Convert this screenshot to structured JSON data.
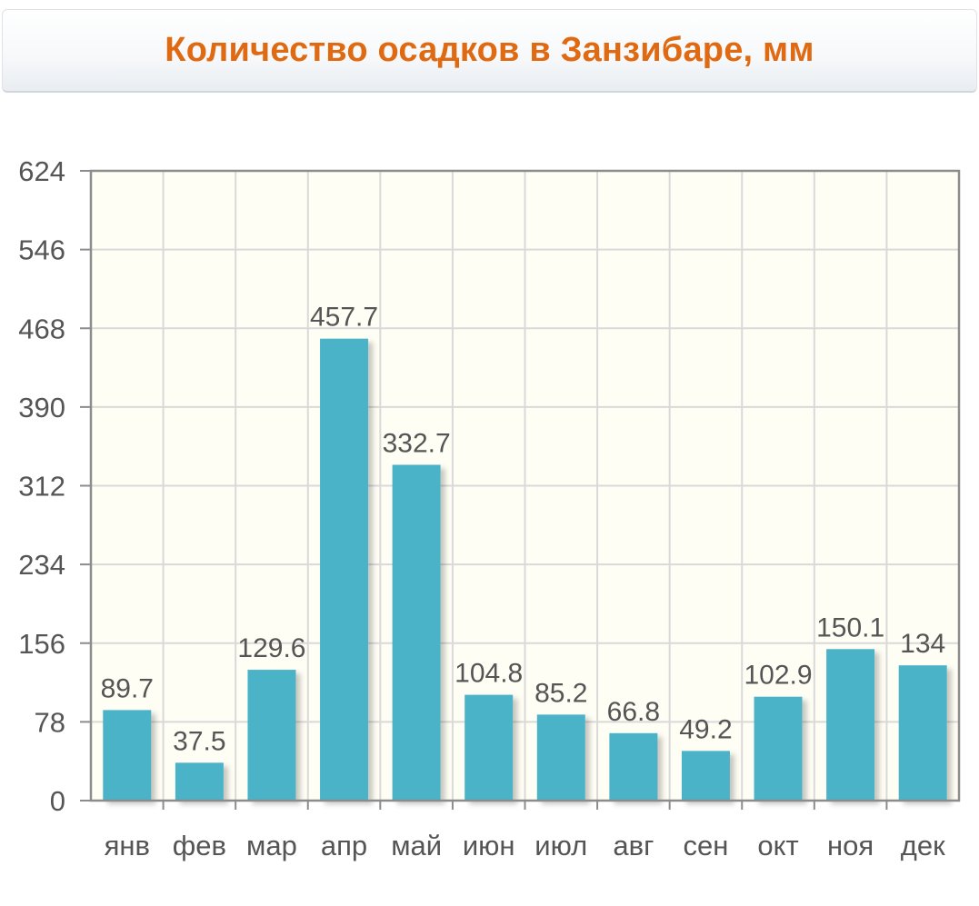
{
  "title": "Количество осадков в Занзибаре, мм",
  "colors": {
    "title": "#e06a12",
    "bar": "#4bb3c8",
    "plot_bg": "#fffef4",
    "grid": "#d9d9d9",
    "axis": "#8c8c8c",
    "text": "#555555"
  },
  "chart_data": {
    "type": "bar",
    "title": "Количество осадков в Занзибаре, мм",
    "categories": [
      "янв",
      "фев",
      "мар",
      "апр",
      "май",
      "июн",
      "июл",
      "авг",
      "сен",
      "окт",
      "ноя",
      "дек"
    ],
    "values": [
      89.7,
      37.5,
      129.6,
      457.7,
      332.7,
      104.8,
      85.2,
      66.8,
      49.2,
      102.9,
      150.1,
      134
    ],
    "value_labels": [
      "89.7",
      "37.5",
      "129.6",
      "457.7",
      "332.7",
      "104.8",
      "85.2",
      "66.8",
      "49.2",
      "102.9",
      "150.1",
      "134"
    ],
    "ylim": [
      0,
      624
    ],
    "yticks": [
      0,
      78,
      156,
      234,
      312,
      390,
      468,
      546,
      624
    ],
    "xlabel": "",
    "ylabel": "",
    "grid": true,
    "legend": "none"
  }
}
